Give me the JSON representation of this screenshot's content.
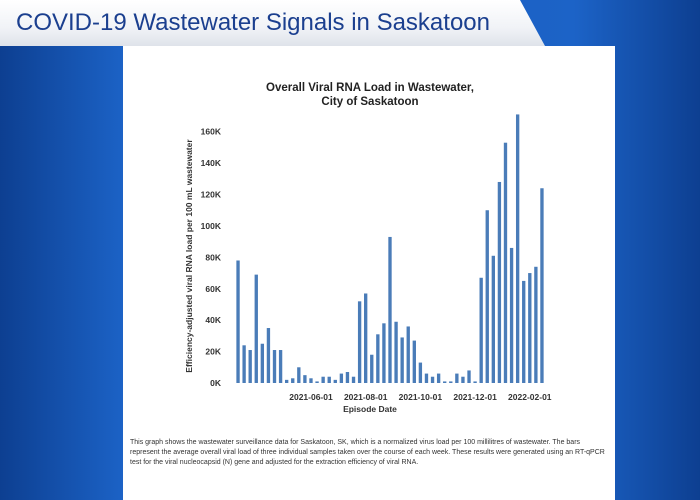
{
  "banner": {
    "title": "COVID-19 Wastewater Signals in Saskatoon"
  },
  "caption": "This graph shows the wastewater surveillance data for Saskatoon, SK, which is a normalized virus load per 100 millilitres of wastewater. The bars represent the average overall viral load of three individual samples taken over the course of each week. These results were generated using an RT-qPCR test for the viral nucleocapsid (N) gene and adjusted for the extraction efficiency of viral RNA.",
  "colors": {
    "bar": "#4a7cb8",
    "banner_text": "#1b3f8f",
    "background": "#1a5fc0"
  },
  "chart_data": {
    "type": "bar",
    "title_lines": [
      "Overall Viral RNA Load in Wastewater,",
      "City of Saskatoon"
    ],
    "xlabel": "Episode Date",
    "ylabel": "Efficiency-adjusted viral RNA load per 100 mL wastewater",
    "ylim": [
      0,
      170000
    ],
    "yticks": [
      0,
      20000,
      40000,
      60000,
      80000,
      100000,
      120000,
      140000,
      160000
    ],
    "ytick_labels": [
      "0K",
      "20K",
      "40K",
      "60K",
      "80K",
      "100K",
      "120K",
      "140K",
      "160K"
    ],
    "xticks": [
      {
        "label": "2021-06-01",
        "index": 12
      },
      {
        "label": "2021-08-01",
        "index": 21
      },
      {
        "label": "2021-10-01",
        "index": 30
      },
      {
        "label": "2021-12-01",
        "index": 39
      },
      {
        "label": "2022-02-01",
        "index": 48
      }
    ],
    "grid": false,
    "values": [
      78000,
      24000,
      21000,
      69000,
      25000,
      35000,
      21000,
      21000,
      2000,
      3000,
      10000,
      5000,
      3000,
      1000,
      4000,
      4000,
      2000,
      6000,
      7000,
      4000,
      52000,
      57000,
      18000,
      31000,
      38000,
      93000,
      39000,
      29000,
      36000,
      27000,
      13000,
      6000,
      4000,
      6000,
      1000,
      1000,
      6000,
      4000,
      8000,
      1000,
      67000,
      110000,
      81000,
      128000,
      153000,
      86000,
      171000,
      65000,
      70000,
      74000,
      124000
    ]
  }
}
